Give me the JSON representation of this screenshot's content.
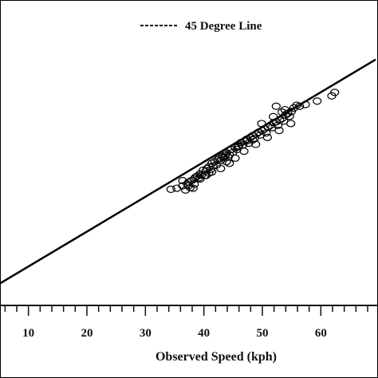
{
  "chart_data": {
    "type": "scatter",
    "xlabel": "Observed Speed (kph)",
    "ylabel": "",
    "xlim": [
      5,
      68
    ],
    "ylim": [
      5,
      70
    ],
    "xticks": [
      10,
      20,
      30,
      40,
      50,
      60
    ],
    "xtick_labels": [
      "10",
      "20",
      "30",
      "40",
      "50",
      "60"
    ],
    "grid": false,
    "legend": {
      "entries": [
        {
          "label": "45 Degree Line",
          "style": "dashed"
        }
      ],
      "placement": "top-center"
    },
    "reference_line": {
      "x": [
        5,
        68
      ],
      "y": [
        5,
        68
      ]
    },
    "points": {
      "x": [
        33.0,
        34.0,
        35.0,
        35.5,
        35.8,
        36.0,
        36.3,
        36.5,
        36.8,
        37.0,
        37.2,
        37.5,
        37.8,
        38.0,
        38.2,
        38.5,
        38.8,
        39.0,
        39.2,
        39.5,
        39.8,
        40.0,
        40.2,
        40.5,
        40.8,
        41.0,
        41.2,
        41.5,
        41.8,
        42.0,
        42.3,
        42.5,
        42.8,
        43.0,
        43.3,
        43.6,
        44.0,
        44.3,
        44.6,
        45.0,
        45.3,
        45.6,
        46.0,
        46.3,
        46.6,
        47.0,
        47.3,
        47.6,
        48.0,
        48.3,
        48.6,
        49.0,
        49.3,
        49.6,
        50.0,
        50.3,
        50.6,
        51.0,
        51.3,
        51.6,
        52.0,
        52.3,
        52.6,
        53.0,
        53.3,
        53.6,
        54.0,
        55.0,
        56.0,
        58.0,
        60.5,
        61.0,
        37.0,
        39.0,
        40.0,
        41.5,
        42.5,
        44.0,
        46.0,
        48.5,
        51.0,
        52.5,
        35.0,
        38.0,
        43.0,
        45.5,
        47.5,
        49.5,
        51.5,
        53.5,
        36.0,
        39.5,
        42.0,
        44.5,
        47.0,
        50.5,
        52.0,
        54.5
      ],
      "y": [
        33.5,
        33.8,
        34.5,
        33.3,
        35.0,
        35.5,
        34.0,
        36.0,
        33.8,
        36.5,
        37.0,
        37.3,
        36.8,
        38.0,
        37.6,
        39.0,
        37.5,
        38.8,
        39.5,
        40.0,
        39.2,
        41.0,
        40.2,
        41.5,
        40.5,
        42.0,
        42.5,
        41.8,
        43.0,
        42.6,
        43.3,
        44.0,
        42.8,
        43.5,
        45.0,
        44.2,
        45.5,
        45.0,
        46.0,
        47.0,
        46.3,
        47.5,
        48.0,
        46.8,
        48.5,
        49.0,
        48.2,
        49.5,
        50.0,
        49.2,
        50.5,
        51.0,
        49.8,
        51.5,
        52.0,
        51.3,
        52.8,
        53.0,
        52.0,
        53.5,
        54.0,
        53.2,
        55.0,
        55.5,
        54.6,
        56.0,
        57.0,
        57.5,
        58.0,
        59.0,
        60.5,
        61.5,
        35.0,
        37.5,
        38.5,
        39.5,
        41.5,
        42.5,
        47.5,
        52.5,
        57.5,
        56.5,
        36.0,
        36.5,
        41.0,
        44.5,
        46.5,
        48.5,
        50.5,
        52.5,
        34.5,
        38.2,
        43.8,
        45.8,
        47.8,
        54.5,
        55.8,
        57.8
      ]
    }
  }
}
